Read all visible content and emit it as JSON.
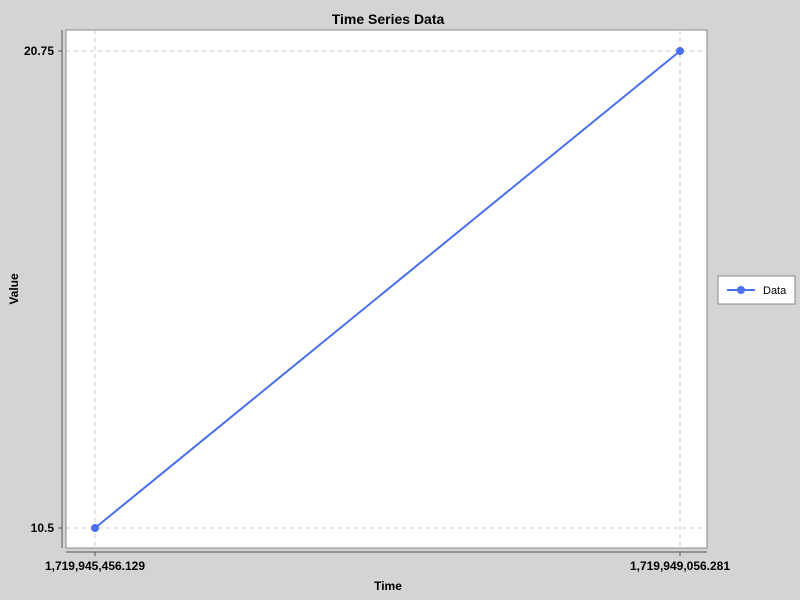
{
  "colors": {
    "background": "#d4d4d4",
    "plot_background": "#ffffff",
    "series": "#4a6ff0",
    "grid": "#c8c8c8"
  },
  "chart_data": {
    "type": "line",
    "title": "Time Series Data",
    "xlabel": "Time",
    "ylabel": "Value",
    "grid": true,
    "legend_position": "right",
    "x_ticks": [
      {
        "value": 1719945456.129,
        "label": "1,719,945,456.129"
      },
      {
        "value": 1719949056.281,
        "label": "1,719,949,056.281"
      }
    ],
    "y_ticks": [
      {
        "value": 10.5,
        "label": "10.5"
      },
      {
        "value": 20.75,
        "label": "20.75"
      }
    ],
    "series": [
      {
        "name": "Data",
        "x": [
          1719945456.129,
          1719949056.281
        ],
        "values": [
          10.5,
          20.75
        ]
      }
    ]
  }
}
